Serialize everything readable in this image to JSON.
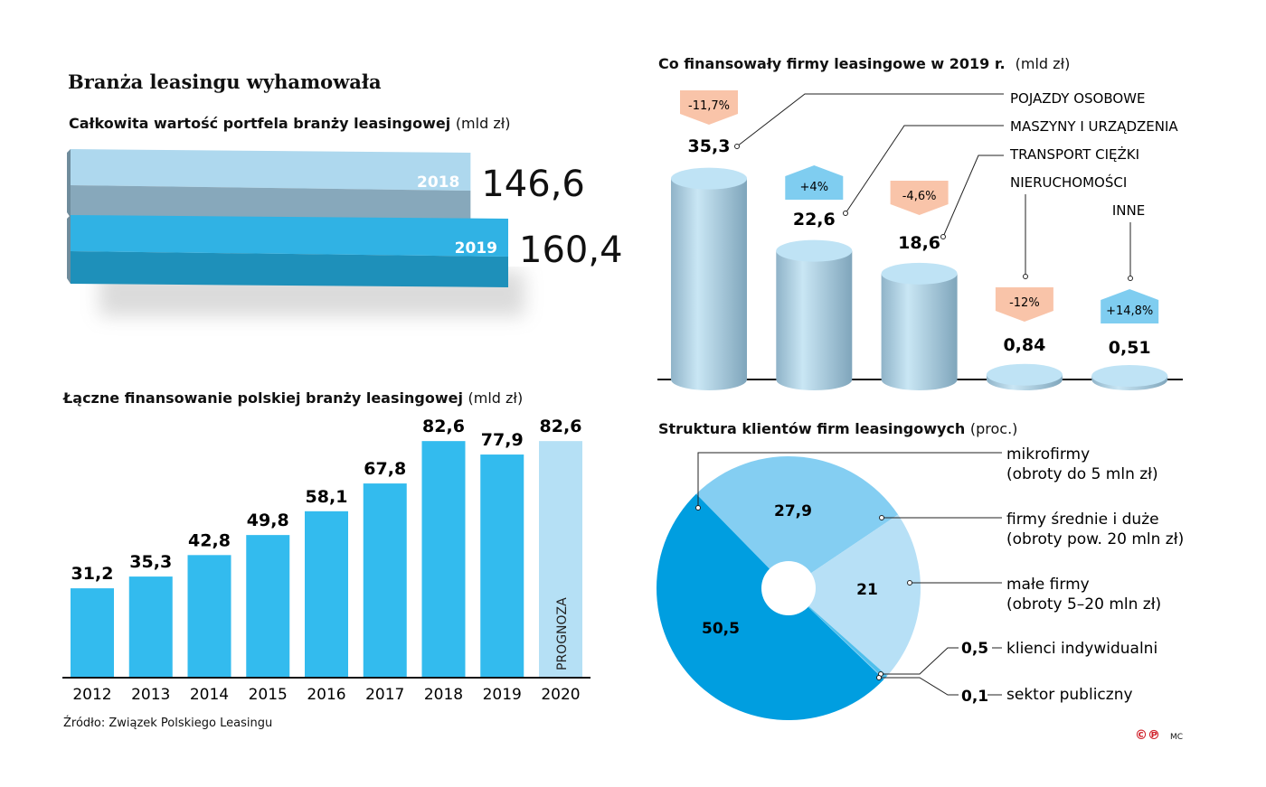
{
  "title": "Branża leasingu wyhamowała",
  "source": "Źródło: Związek Polskiego Leasingu",
  "credit": {
    "logo": "©℗",
    "initials": "MC"
  },
  "colors": {
    "bar": "#33bbee",
    "forecast": "#b5e0f5",
    "neg_badge": "#f9c4a9",
    "pos_badge": "#7fcdf0",
    "pie_dark": "#009ee0",
    "pie_mid": "#84cef2",
    "pie_light": "#b7e0f6"
  },
  "chart_data": [
    {
      "type": "bar",
      "title": "Całkowita wartość portfela branży leasingowej",
      "unit": "(mld zł)",
      "categories": [
        "2018",
        "2019"
      ],
      "values": [
        146.6,
        160.4
      ],
      "value_labels": [
        "146,6",
        "160,4"
      ]
    },
    {
      "type": "bar",
      "title": "Łączne finansowanie polskiej branży leasingowej",
      "unit": "(mld zł)",
      "categories": [
        "2012",
        "2013",
        "2014",
        "2015",
        "2016",
        "2017",
        "2018",
        "2019",
        "2020"
      ],
      "values": [
        31.2,
        35.3,
        42.8,
        49.8,
        58.1,
        67.8,
        82.6,
        77.9,
        82.6
      ],
      "value_labels": [
        "31,2",
        "35,3",
        "42,8",
        "49,8",
        "58,1",
        "67,8",
        "82,6",
        "77,9",
        "82,6"
      ],
      "forecast_label": "PROGNOZA",
      "forecast_index": 8
    },
    {
      "type": "bar",
      "title": "Co finansowały firmy leasingowe w 2019 r.",
      "unit": "(mld zł)",
      "categories": [
        "POJAZDY OSOBOWE",
        "MASZYNY I URZĄDZENIA",
        "TRANSPORT CIĘŻKI",
        "NIERUCHOMOŚCI",
        "INNE"
      ],
      "values": [
        35.3,
        22.6,
        18.6,
        0.84,
        0.51
      ],
      "value_labels": [
        "35,3",
        "22,6",
        "18,6",
        "0,84",
        "0,51"
      ],
      "changes": [
        "-11,7%",
        "+4%",
        "-4,6%",
        "-12%",
        "+14,8%"
      ],
      "change_values": [
        -11.7,
        4,
        -4.6,
        -12,
        14.8
      ]
    },
    {
      "type": "pie",
      "title": "Struktura klientów firm leasingowych",
      "unit": "(proc.)",
      "slices": [
        {
          "name": "firmy średnie i duże",
          "note": "(obroty pow. 20 mln zł)",
          "value": 27.9,
          "label": "27,9"
        },
        {
          "name": "małe firmy",
          "note": "(obroty 5–20 mln zł)",
          "value": 21,
          "label": "21"
        },
        {
          "name": "klienci indywidualni",
          "note": "",
          "value": 0.5,
          "label": "0,5"
        },
        {
          "name": "sektor publiczny",
          "note": "",
          "value": 0.1,
          "label": "0,1"
        },
        {
          "name": "mikrofirmy",
          "note": "(obroty do 5 mln zł)",
          "value": 50.5,
          "label": "50,5"
        }
      ]
    }
  ]
}
